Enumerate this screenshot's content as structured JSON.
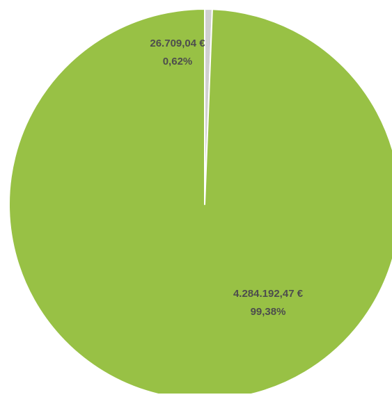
{
  "chart_data": {
    "type": "pie",
    "start_angle_deg": 0,
    "direction": "clockwise",
    "slices": [
      {
        "value": 26709.04,
        "value_label": "26.709,04 €",
        "percent_label": "0,62%",
        "color": "#d0d0d0"
      },
      {
        "value": 4284192.47,
        "value_label": "4.284.192,47 €",
        "percent_label": "99,38%",
        "color": "#98c145"
      }
    ],
    "separator_color": "#ffffff"
  }
}
